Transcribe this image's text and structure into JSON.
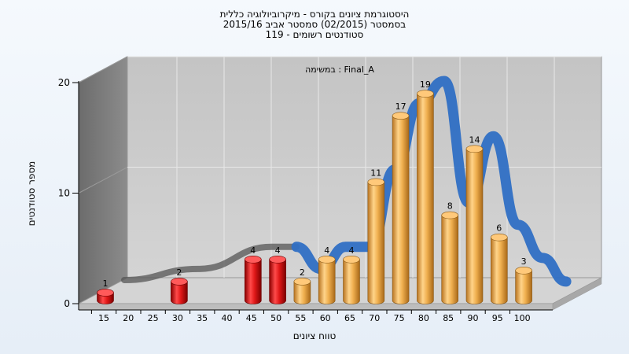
{
  "chart_data": {
    "type": "bar",
    "title_lines": [
      "היסטוגרמת ציונים בקורס - מיקרוביולוגיה כללית",
      "בסמסטר (02/2015) סמסטר אביב 2015/16",
      "119 - סטודנטים רשומים"
    ],
    "annotation": "במשימה : Final_A",
    "xlabel": "טווח ציונים",
    "ylabel": "מספר סטודנטים",
    "x_ticks": [
      "15",
      "20",
      "25",
      "30",
      "35",
      "40",
      "45",
      "50",
      "55",
      "60",
      "65",
      "70",
      "75",
      "80",
      "85",
      "90",
      "95",
      "100"
    ],
    "y_ticks": [
      "0",
      "10",
      "20"
    ],
    "ylim": [
      0,
      20
    ],
    "grid": true,
    "bars": [
      {
        "x": 15,
        "value": 1,
        "color": "red"
      },
      {
        "x": 30,
        "value": 2,
        "color": "red"
      },
      {
        "x": 45,
        "value": 4,
        "color": "red"
      },
      {
        "x": 50,
        "value": 4,
        "color": "red"
      },
      {
        "x": 55,
        "value": 2,
        "color": "orange"
      },
      {
        "x": 60,
        "value": 4,
        "color": "orange"
      },
      {
        "x": 65,
        "value": 4,
        "color": "orange"
      },
      {
        "x": 70,
        "value": 11,
        "color": "orange"
      },
      {
        "x": 75,
        "value": 17,
        "color": "orange"
      },
      {
        "x": 80,
        "value": 19,
        "color": "orange"
      },
      {
        "x": 85,
        "value": 8,
        "color": "orange"
      },
      {
        "x": 90,
        "value": 14,
        "color": "orange"
      },
      {
        "x": 95,
        "value": 6,
        "color": "orange"
      },
      {
        "x": 100,
        "value": 3,
        "color": "orange"
      }
    ],
    "colors": {
      "red_bar": "#e02020",
      "orange_bar": "#f0b050",
      "curve": "#2f6fc4",
      "curve_shadow": "#555555",
      "back_wall": "#c8c8c8",
      "side_wall": "#7a7a7a",
      "floor": "#d8d8d8"
    }
  }
}
